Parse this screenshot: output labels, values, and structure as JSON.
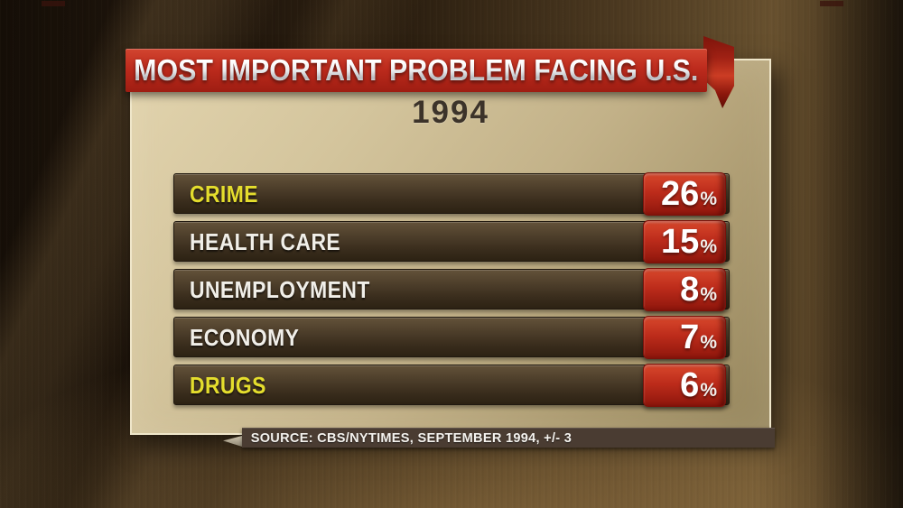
{
  "banner": {
    "title": "MOST IMPORTANT PROBLEM FACING U.S."
  },
  "panel": {
    "year": "1994"
  },
  "rows": [
    {
      "label": "CRIME",
      "value": "26",
      "unit": "%",
      "label_hex": "#e4dd2d"
    },
    {
      "label": "HEALTH CARE",
      "value": "15",
      "unit": "%",
      "label_hex": "#f1efe9"
    },
    {
      "label": "UNEMPLOYMENT",
      "value": "8",
      "unit": "%",
      "label_hex": "#f1efe9"
    },
    {
      "label": "ECONOMY",
      "value": "7",
      "unit": "%",
      "label_hex": "#f1efe9"
    },
    {
      "label": "DRUGS",
      "value": "6",
      "unit": "%",
      "label_hex": "#e4dd2d"
    }
  ],
  "source_bar": {
    "text": "SOURCE: CBS/NYTIMES, SEPTEMBER 1994, +/- 3"
  },
  "colors": {
    "banner_red": "#bd2b1d",
    "value_box_red": "#bd2c1b",
    "panel_tan": "#c3b289",
    "row_brown": "#3a2d1d",
    "highlight_yellow": "#e4dd2d",
    "text_silver": "#f1efe9",
    "year_brown": "#3c332a",
    "source_bar_brown": "#4a3c32"
  },
  "chart_data": {
    "type": "bar",
    "title": "MOST IMPORTANT PROBLEM FACING U.S.",
    "subtitle": "1994",
    "categories": [
      "CRIME",
      "HEALTH CARE",
      "UNEMPLOYMENT",
      "ECONOMY",
      "DRUGS"
    ],
    "values": [
      26,
      15,
      8,
      7,
      6
    ],
    "unit": "%",
    "source": "SOURCE: CBS/NYTIMES, SEPTEMBER 1994, +/- 3",
    "margin_of_error": "+/- 3",
    "highlighted_categories": [
      "CRIME",
      "DRUGS"
    ],
    "legend": false,
    "orientation": "horizontal-list"
  }
}
